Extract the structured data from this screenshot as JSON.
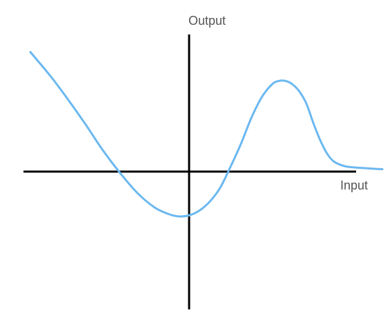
{
  "chart_data": {
    "type": "line",
    "title": "",
    "xlabel": "Input",
    "ylabel": "Output",
    "grid": false,
    "legend": "none",
    "xlim": [
      -4.8,
      5.6
    ],
    "ylim": [
      -4.0,
      4.0
    ],
    "series": [
      {
        "color": "#6bb8f0",
        "x": [
          -4.6,
          -4.0,
          -3.5,
          -3.0,
          -2.5,
          -2.0,
          -1.5,
          -1.0,
          -0.6,
          -0.3,
          0.0,
          0.3,
          0.6,
          0.9,
          1.2,
          1.5,
          1.8,
          2.1,
          2.4,
          2.6,
          2.8,
          3.0,
          3.2,
          3.4,
          3.6,
          3.8,
          4.0,
          4.2,
          4.5,
          4.8,
          5.1,
          5.4,
          5.6
        ],
        "y": [
          3.47,
          2.75,
          2.08,
          1.37,
          0.62,
          -0.04,
          -0.62,
          -1.04,
          -1.23,
          -1.3,
          -1.27,
          -1.13,
          -0.87,
          -0.47,
          0.14,
          0.8,
          1.55,
          2.15,
          2.53,
          2.63,
          2.63,
          2.53,
          2.32,
          1.97,
          1.41,
          0.91,
          0.52,
          0.29,
          0.16,
          0.12,
          0.1,
          0.08,
          0.07
        ]
      }
    ]
  }
}
